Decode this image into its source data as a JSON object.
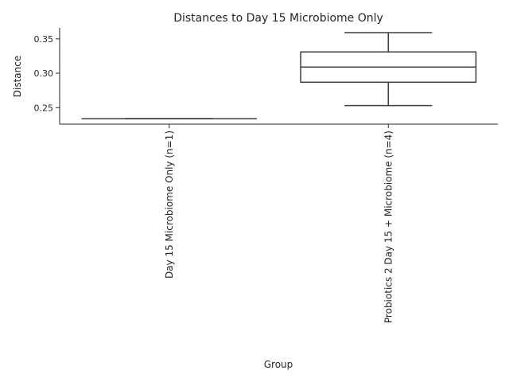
{
  "chart_data": {
    "type": "box",
    "title": "Distances to Day 15 Microbiome Only",
    "xlabel": "Group",
    "ylabel": "Distance",
    "ylim": [
      0.226,
      0.366
    ],
    "yticks": [
      0.25,
      0.3,
      0.35
    ],
    "ytick_labels": [
      "0.25",
      "0.30",
      "0.35"
    ],
    "grid": false,
    "colors": {
      "line": "#3f3f3f",
      "axis": "#262626",
      "box_fill": "#ffffff"
    },
    "categories": [
      "Day 15 Microbiome Only (n=1)",
      "Probiotics 2 Day 15 + Microbiome (n=4)"
    ],
    "boxes": [
      {
        "min": 0.234,
        "q1": 0.234,
        "median": 0.234,
        "q3": 0.234,
        "max": 0.234
      },
      {
        "min": 0.253,
        "q1": 0.287,
        "median": 0.309,
        "q3": 0.331,
        "max": 0.359
      }
    ]
  }
}
